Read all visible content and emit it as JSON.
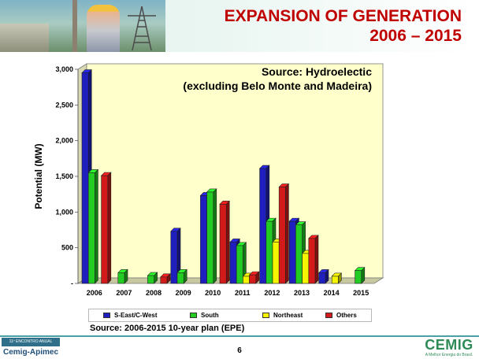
{
  "header": {
    "title_line1": "EXPANSION OF GENERATION",
    "title_line2": "2006 – 2015"
  },
  "chart_data": {
    "type": "bar",
    "title": "Source: Hydroelectic",
    "subtitle": "(excluding Belo Monte and Madeira)",
    "xlabel": "",
    "ylabel": "Potential (MW)",
    "categories": [
      "2006",
      "2007",
      "2008",
      "2009",
      "2010",
      "2011",
      "2012",
      "2013",
      "2014",
      "2015"
    ],
    "ylim": [
      0,
      3000
    ],
    "yticks": [
      {
        "value": 0,
        "label": "-"
      },
      {
        "value": 500,
        "label": "500"
      },
      {
        "value": 1000,
        "label": "1,000"
      },
      {
        "value": 1500,
        "label": "1,500"
      },
      {
        "value": 2000,
        "label": "2,000"
      },
      {
        "value": 2500,
        "label": "2,500"
      },
      {
        "value": 3000,
        "label": "3,000"
      }
    ],
    "series": [
      {
        "name": "S-East/C-West",
        "color": "#1f1fbf",
        "values": [
          2950,
          0,
          0,
          730,
          1230,
          580,
          1610,
          870,
          150,
          0
        ]
      },
      {
        "name": "South",
        "color": "#22cc22",
        "values": [
          1550,
          150,
          110,
          150,
          1280,
          530,
          870,
          820,
          0,
          180
        ]
      },
      {
        "name": "Northeast",
        "color": "#f5f500",
        "values": [
          0,
          0,
          0,
          0,
          0,
          100,
          580,
          420,
          100,
          0
        ]
      },
      {
        "name": "Others",
        "color": "#d31a1a",
        "values": [
          1510,
          0,
          90,
          0,
          1110,
          120,
          1350,
          630,
          0,
          0
        ]
      }
    ],
    "grid": false,
    "legend_position": "bottom",
    "plot_background": "#ffffcc"
  },
  "source_note": "Source: 2006-2015 10-year plan (EPE)",
  "footer": {
    "page_number": "6",
    "event_caption": "11º ENCONTRO ANUAL",
    "event_name": "Cemig-Apimec",
    "brand_name": "CEMIG",
    "brand_tagline": "A Melhor Energia do Brasil."
  },
  "colors": {
    "title": "#c00000",
    "accent_line": "#4aa0a4"
  }
}
